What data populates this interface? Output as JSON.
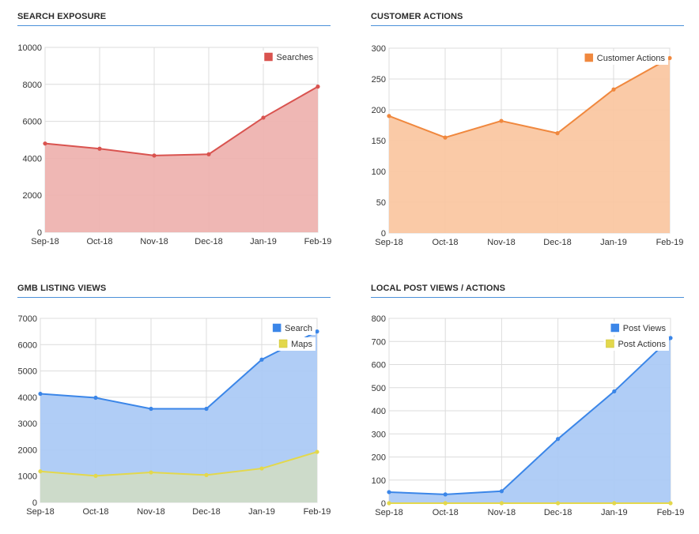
{
  "chart_data": [
    {
      "type": "area",
      "title": "SEARCH EXPOSURE",
      "categories": [
        "Sep-18",
        "Oct-18",
        "Nov-18",
        "Dec-18",
        "Jan-19",
        "Feb-19"
      ],
      "ylim": [
        0,
        10000
      ],
      "yticks": [
        "0",
        "2000",
        "4000",
        "6000",
        "8000",
        "10000"
      ],
      "grid": true,
      "legend_position": "top-right",
      "series": [
        {
          "name": "Searches",
          "values": [
            4800,
            4520,
            4150,
            4220,
            6200,
            7880
          ],
          "color": "#d9534f",
          "fill": "#eeb1ae"
        }
      ]
    },
    {
      "type": "area",
      "title": "CUSTOMER ACTIONS",
      "categories": [
        "Sep-18",
        "Oct-18",
        "Nov-18",
        "Dec-18",
        "Jan-19",
        "Feb-19"
      ],
      "ylim": [
        0,
        300
      ],
      "yticks": [
        "0",
        "50",
        "100",
        "150",
        "200",
        "250",
        "300"
      ],
      "grid": true,
      "legend_position": "top-right",
      "series": [
        {
          "name": "Customer Actions",
          "values": [
            190,
            155,
            182,
            162,
            233,
            284
          ],
          "color": "#f0883e",
          "fill": "#fac6a0"
        }
      ]
    },
    {
      "type": "area",
      "title": "GMB LISTING VIEWS",
      "categories": [
        "Sep-18",
        "Oct-18",
        "Nov-18",
        "Dec-18",
        "Jan-19",
        "Feb-19"
      ],
      "ylim": [
        0,
        7000
      ],
      "yticks": [
        "0",
        "1000",
        "2000",
        "3000",
        "4000",
        "5000",
        "6000",
        "7000"
      ],
      "grid": true,
      "legend_position": "top-right",
      "series": [
        {
          "name": "Search",
          "values": [
            4130,
            3980,
            3560,
            3560,
            5430,
            6500
          ],
          "color": "#3b86e8",
          "fill": "#a9c9f5"
        },
        {
          "name": "Maps",
          "values": [
            1180,
            1010,
            1140,
            1040,
            1290,
            1920
          ],
          "color": "#e3d84c",
          "fill": "#cfdcc6"
        }
      ]
    },
    {
      "type": "area",
      "title": "LOCAL POST VIEWS / ACTIONS",
      "categories": [
        "Sep-18",
        "Oct-18",
        "Nov-18",
        "Dec-18",
        "Jan-19",
        "Feb-19"
      ],
      "ylim": [
        0,
        800
      ],
      "yticks": [
        "0",
        "100",
        "200",
        "300",
        "400",
        "500",
        "600",
        "700",
        "800"
      ],
      "grid": true,
      "legend_position": "top-right",
      "series": [
        {
          "name": "Post Views",
          "values": [
            48,
            38,
            52,
            278,
            484,
            715
          ],
          "color": "#3b86e8",
          "fill": "#a9c9f5"
        },
        {
          "name": "Post Actions",
          "values": [
            0,
            0,
            0,
            0,
            0,
            0
          ],
          "color": "#e3d84c",
          "fill": "#f3ec9a"
        }
      ]
    }
  ]
}
